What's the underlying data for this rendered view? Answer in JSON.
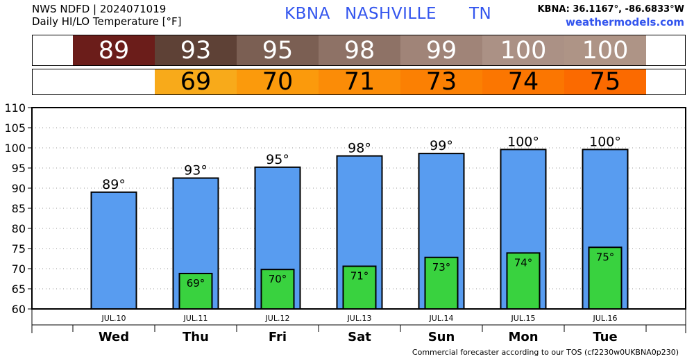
{
  "header": {
    "line1": "NWS NDFD | 2024071019",
    "line2": "Daily HI/LO Temperature [°F]",
    "station_id": "KBNA",
    "station_city": "NASHVILLE",
    "station_state": "TN",
    "coords": "KBNA: 36.1167°, -86.6833°W",
    "site": "weathermodels.com"
  },
  "hi_strip": {
    "values": [
      "89",
      "93",
      "95",
      "98",
      "99",
      "100",
      "100"
    ],
    "colors": [
      "#6b1d1a",
      "#5e4136",
      "#7b5f53",
      "#8e7266",
      "#a08478",
      "#ab9185",
      "#ae9486"
    ]
  },
  "lo_strip": {
    "values": [
      "",
      "69",
      "70",
      "71",
      "73",
      "74",
      "75"
    ],
    "colors": [
      "#ffffff",
      "#f8aa1a",
      "#fb9a0c",
      "#fb8c07",
      "#fb8003",
      "#fb7601",
      "#fb6a00"
    ]
  },
  "footer": "Commercial forecaster according to our TOS (cf2230w0UKBNA0p230)",
  "chart_data": {
    "type": "bar",
    "categories": [
      "JUL.10",
      "JUL.11",
      "JUL.12",
      "JUL.13",
      "JUL.14",
      "JUL.15",
      "JUL.16"
    ],
    "day_labels": [
      "Wed",
      "Thu",
      "Fri",
      "Sat",
      "Sun",
      "Mon",
      "Tue"
    ],
    "series": [
      {
        "values": [
          89,
          92.5,
          95.2,
          98,
          98.6,
          99.6,
          99.6
        ],
        "labels": [
          "89°",
          "93°",
          "95°",
          "98°",
          "99°",
          "100°",
          "100°"
        ],
        "color": "#589cf0"
      },
      {
        "values": [
          null,
          68.8,
          69.8,
          70.6,
          72.8,
          73.9,
          75.3
        ],
        "labels": [
          "",
          "69°",
          "70°",
          "71°",
          "73°",
          "74°",
          "75°"
        ],
        "color": "#39d23f"
      }
    ],
    "ylim": [
      60,
      110
    ],
    "yticks": [
      60,
      65,
      70,
      75,
      80,
      85,
      90,
      95,
      100,
      105,
      110
    ],
    "grid": true
  }
}
